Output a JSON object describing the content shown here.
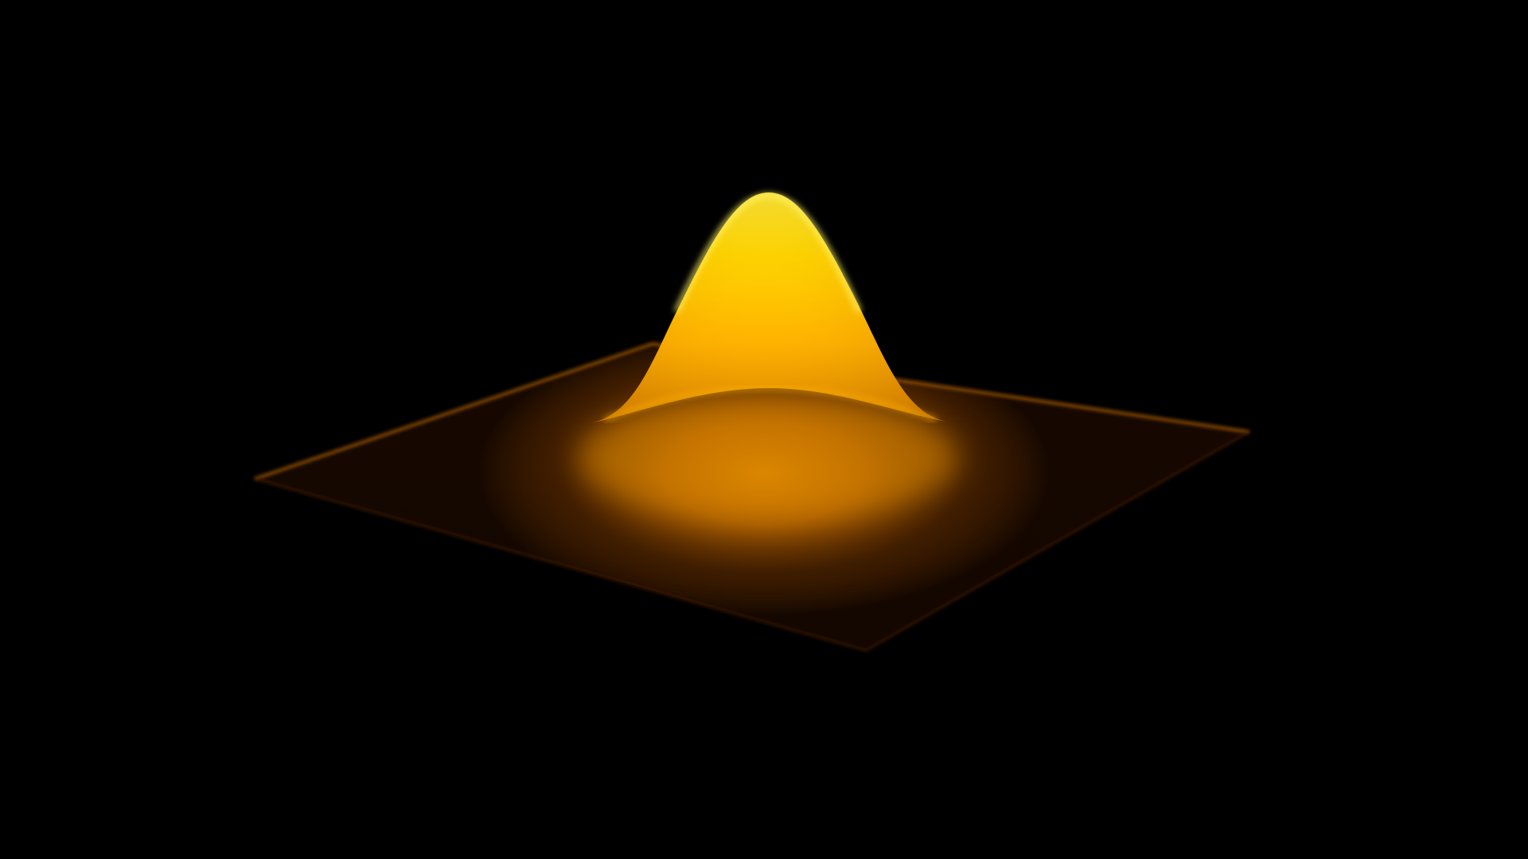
{
  "scene": {
    "subject": "gaussian-surface-render",
    "colors": {
      "background": "#000000",
      "peak_highlight": "#fff23a",
      "peak_core": "#ffd400",
      "surface_mid": "#ffb000",
      "surface_dark": "#b85a00",
      "plane_glow": "#c86a00",
      "plane_edge": "#6a3500",
      "plane_fade": "#1a0a00"
    }
  }
}
